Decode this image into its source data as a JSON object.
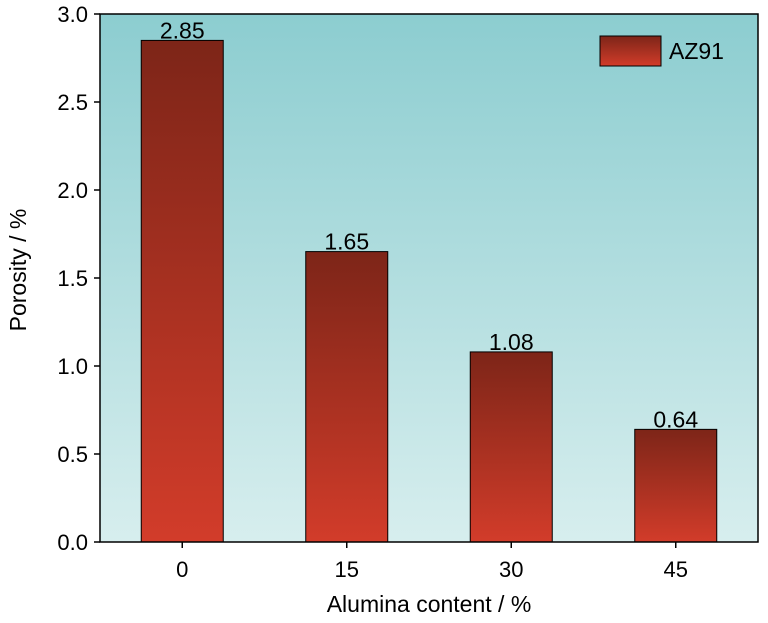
{
  "chart_data": {
    "type": "bar",
    "categories": [
      "0",
      "15",
      "30",
      "45"
    ],
    "series": [
      {
        "name": "AZ91",
        "values": [
          2.85,
          1.65,
          1.08,
          0.64
        ]
      }
    ],
    "data_labels": [
      "2.85",
      "1.65",
      "1.08",
      "0.64"
    ],
    "xlabel": "Alumina content / %",
    "ylabel": "Porosity / %",
    "ylim": [
      0,
      3.0
    ],
    "yticks": [
      0.0,
      0.5,
      1.0,
      1.5,
      2.0,
      2.5,
      3.0
    ],
    "ytick_labels": [
      "0.0",
      "0.5",
      "1.0",
      "1.5",
      "2.0",
      "2.5",
      "3.0"
    ],
    "grid": false,
    "legend_position": "top-right",
    "colors": {
      "bar_top": "#7d2518",
      "bar_bottom": "#d23c2a",
      "background_top": "#8ccdd0",
      "background_bottom": "#d7eeee",
      "axis": "#000000"
    }
  }
}
